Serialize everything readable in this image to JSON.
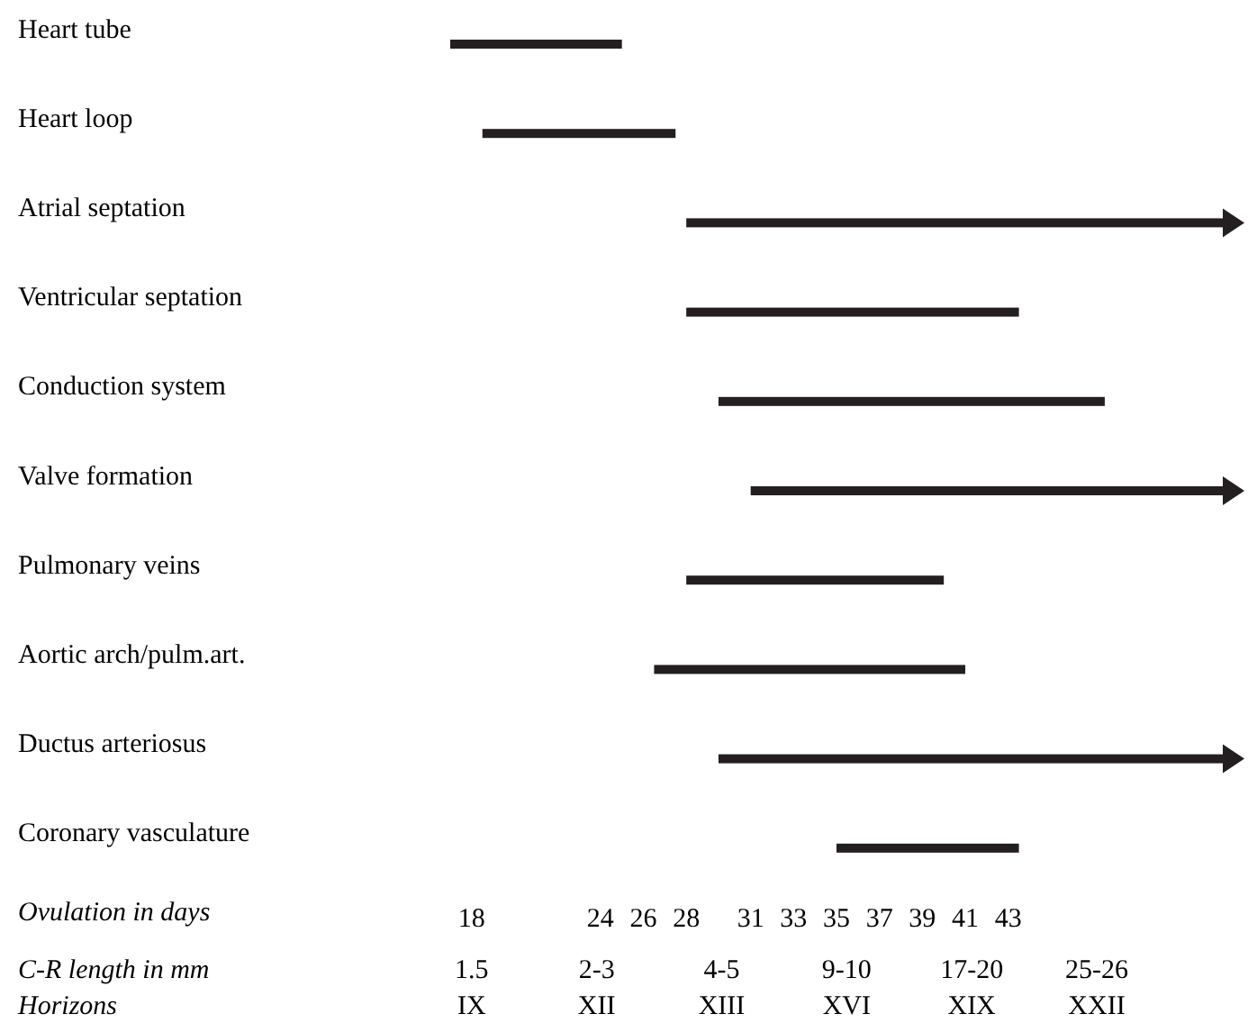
{
  "chart_data": {
    "type": "bar",
    "orientation": "horizontal",
    "categories": [
      "Heart tube",
      "Heart loop",
      "Atrial septation",
      "Ventricular septation",
      "Conduction system",
      "Valve formation",
      "Pulmonary veins",
      "Aortic arch/pulm.art.",
      "Ductus arteriosus",
      "Coronary vasculature"
    ],
    "base": [
      17,
      18.5,
      28,
      28,
      29.5,
      31,
      28,
      26.5,
      29.5,
      35
    ],
    "values": [
      8,
      9,
      25,
      15.5,
      18,
      22,
      12,
      14.5,
      23.5,
      8.5
    ],
    "color": "#231f20",
    "xlim": [
      17,
      53
    ],
    "xticks": [
      18,
      24,
      26,
      28,
      31,
      33,
      35,
      37,
      39,
      41,
      43
    ],
    "xlabel": "Ovulation in days",
    "annotations": [
      "C-R length in mm",
      "1.5",
      "2-3",
      "4-5",
      "9-10",
      "17-20",
      "25-26",
      "Horizons",
      "IX",
      "XII",
      "XIII",
      "XVI",
      "XIX",
      "XXII"
    ]
  }
}
